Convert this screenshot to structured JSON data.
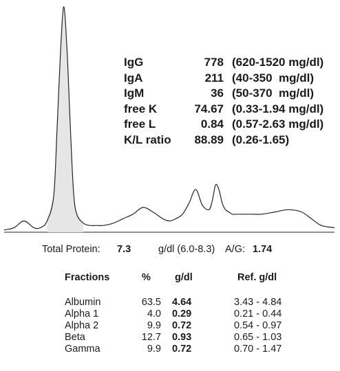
{
  "immunoglobulins": [
    {
      "name": "IgG",
      "value": "778",
      "ref": "(620-1520 mg/dl)"
    },
    {
      "name": "IgA",
      "value": "211",
      "ref": "(40-350  mg/dl)"
    },
    {
      "name": "IgM",
      "value": "36",
      "ref": "(50-370  mg/dl)"
    },
    {
      "name": "free K",
      "value": "74.67",
      "ref": "(0.33-1.94 mg/dl)"
    },
    {
      "name": "free L",
      "value": "0.84",
      "ref": "(0.57-2.63 mg/dl)"
    },
    {
      "name": "K/L ratio",
      "value": "88.89",
      "ref": "(0.26-1.65)"
    }
  ],
  "summary": {
    "total_protein_label": "Total Protein:",
    "total_protein_value": "7.3",
    "total_protein_unit_ref": "g/dl (6.0-8.3)",
    "ag_label": "A/G:",
    "ag_value": "1.74"
  },
  "table": {
    "headers": [
      "Fractions",
      "%",
      "g/dl",
      "Ref. g/dl"
    ],
    "rows": [
      [
        "Albumin",
        "63.5",
        "4.64",
        "3.43 - 4.84"
      ],
      [
        "Alpha 1",
        "4.0",
        "0.29",
        "0.21 - 0.44"
      ],
      [
        "Alpha 2",
        "9.9",
        "0.72",
        "0.54 - 0.97"
      ],
      [
        "Beta",
        "12.7",
        "0.93",
        "0.65 - 1.03"
      ],
      [
        "Gamma",
        "9.9",
        "0.72",
        "0.70 - 1.47"
      ]
    ]
  },
  "chart_data": {
    "type": "line",
    "title": "",
    "xlabel": "",
    "ylabel": "",
    "grid": false,
    "series": [
      {
        "x": [
          0,
          3,
          6,
          9,
          11,
          13,
          15,
          16,
          17,
          18,
          19,
          20,
          21,
          22,
          24,
          26,
          28,
          30,
          33,
          36,
          39,
          42,
          45,
          48,
          50,
          52,
          54,
          56,
          58,
          60,
          62,
          63,
          64,
          65,
          66,
          67,
          68,
          69,
          70,
          72,
          75,
          78,
          82,
          86,
          90,
          93,
          96,
          100
        ],
        "y": [
          1,
          2,
          5,
          2,
          2,
          5,
          16,
          45,
          78,
          100,
          82,
          48,
          18,
          8,
          4,
          3,
          3,
          3,
          4,
          6,
          8,
          11,
          9,
          6,
          5,
          6,
          8,
          13,
          19,
          12,
          10,
          14,
          21,
          19,
          13,
          10,
          9,
          8,
          8,
          8,
          8,
          8,
          9,
          10,
          9,
          6,
          3,
          2
        ]
      }
    ],
    "fractions": [
      {
        "name": "Albumin",
        "percent": 63.5,
        "g_dl": 4.64,
        "ref": "3.43 - 4.84"
      },
      {
        "name": "Alpha 1",
        "percent": 4.0,
        "g_dl": 0.29,
        "ref": "0.21 - 0.44"
      },
      {
        "name": "Alpha 2",
        "percent": 9.9,
        "g_dl": 0.72,
        "ref": "0.54 - 0.97"
      },
      {
        "name": "Beta",
        "percent": 12.7,
        "g_dl": 0.93,
        "ref": "0.65 - 1.03"
      },
      {
        "name": "Gamma",
        "percent": 9.9,
        "g_dl": 0.72,
        "ref": "0.70 - 1.47"
      }
    ]
  }
}
